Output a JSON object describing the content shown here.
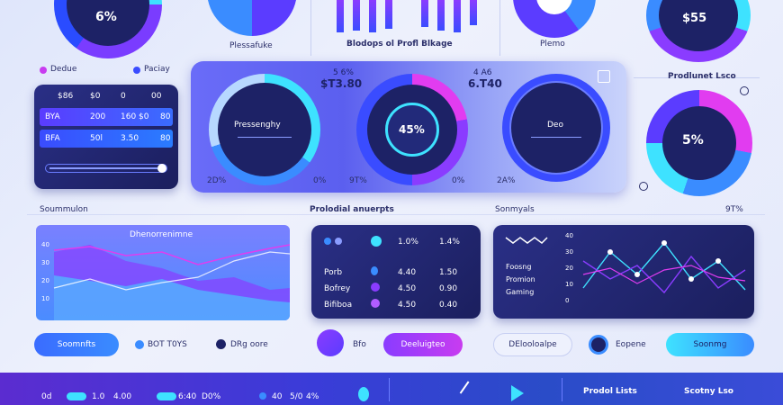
{
  "top": {
    "gauge1_value": "6%",
    "label_mid1": "Plessafuke",
    "label_mid2": "Blodops ol Profl Blkage",
    "label_mid3": "Plemo",
    "gauge5_value": "$55"
  },
  "legend": {
    "item1": "Dedue",
    "item2": "Paciay"
  },
  "left_table": {
    "header": [
      "$86",
      "$0",
      "0",
      "00"
    ],
    "rows": [
      [
        "BYA",
        "200",
        "160 $0",
        "80"
      ],
      [
        "BFA",
        "50l",
        "3.50",
        "80"
      ]
    ]
  },
  "center_panel": {
    "stat1_label": "5 6%",
    "stat1_value": "$T3.80",
    "stat2_label": "4 A6",
    "stat2_value": "6.T40",
    "gauge_a_label": "Pressenghy",
    "gauge_b_value": "45%",
    "gauge_c_label": "Deo",
    "pct_left": "2D%",
    "pct_mid1": "0%",
    "pct_mid2": "9T%",
    "pct_mid3": "0%",
    "pct_right": "2A%"
  },
  "right_panel": {
    "title": "Prodlunet Lsco",
    "gauge_value": "5%"
  },
  "section_titles": {
    "left": "Soummulon",
    "center": "Prolodial anuerpts",
    "right": "Sonmyals",
    "right_pct": "9T%"
  },
  "line_chart_left": {
    "chart_title": "Dhenorrenimne",
    "y_ticks": [
      "40",
      "30",
      "20",
      "10"
    ]
  },
  "center_stats": {
    "row1": [
      "1.0%",
      "1.4%"
    ],
    "row2_label": "Porb",
    "row2": [
      "4.40",
      "1.50"
    ],
    "row3_label": "Bofrey",
    "row3": [
      "4.50",
      "0.90"
    ],
    "row4_label": "Bifiboa",
    "row4": [
      "4.50",
      "0.40"
    ]
  },
  "line_chart_right": {
    "y_ticks": [
      "40",
      "30",
      "20",
      "10",
      "0"
    ],
    "labels": [
      "Foosng",
      "Promion",
      "Gaming"
    ]
  },
  "buttons": {
    "b1": "Soomnfts",
    "b2": "BOT T0YS",
    "b3": "DRg oore",
    "b4": "Bfo",
    "b5": "Deeluigteo",
    "b6": "DElooloalpe",
    "b7": "Eopene",
    "b8": "Soonmg"
  },
  "bottom_bar": {
    "items": [
      "0d",
      "1.0",
      "4.00",
      "6:40",
      "D0%",
      "40",
      "5/0",
      "4%"
    ],
    "right1": "Prodol Lists",
    "right2": "Scotny Lso"
  },
  "colors": {
    "accent_blue": "#3a8cff",
    "accent_purple": "#8a3cff",
    "accent_pink": "#e13cf0",
    "panel_dark": "#1d2266",
    "cyan": "#3ee2ff"
  }
}
